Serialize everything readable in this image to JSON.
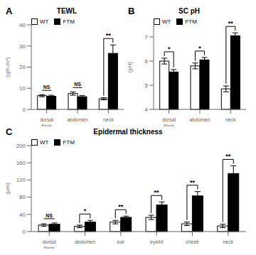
{
  "chart_data": [
    {
      "type": "bar",
      "title": "TEWL",
      "y_label": "(g/h.m²)",
      "annotations": [
        "A"
      ],
      "categories": [
        "dorsal\nflank",
        "abdomen",
        "neck"
      ],
      "series": [
        {
          "name": "WT",
          "color": "white",
          "values": [
            6.5,
            7.5,
            5.0
          ],
          "errors": [
            0.5,
            0.8,
            0.5
          ]
        },
        {
          "name": "FTM",
          "color": "black",
          "values": [
            6.2,
            6.0,
            26.5
          ],
          "errors": [
            0.5,
            0.5,
            4.0
          ]
        }
      ],
      "significance": [
        "NS",
        "NS",
        "**"
      ],
      "ylim": [
        0,
        40
      ],
      "yticks": [
        0,
        10,
        20,
        30,
        40
      ],
      "legend": "upper left"
    },
    {
      "type": "bar",
      "title": "SC pH",
      "y_label": "(pH)",
      "annotations": [
        "B"
      ],
      "categories": [
        "dorsal\nflank",
        "abdomen",
        "neck"
      ],
      "series": [
        {
          "name": "WT",
          "color": "white",
          "values": [
            6.0,
            5.8,
            4.85
          ],
          "errors": [
            0.12,
            0.12,
            0.12
          ]
        },
        {
          "name": "FTM",
          "color": "black",
          "values": [
            5.55,
            6.05,
            7.05
          ],
          "errors": [
            0.1,
            0.1,
            0.12
          ]
        }
      ],
      "significance": [
        "*",
        "*",
        "**"
      ],
      "ylim": [
        4,
        7.5
      ],
      "yticks": [
        4,
        5,
        6,
        7
      ],
      "legend": "upper left"
    },
    {
      "type": "bar",
      "title": "Epidermal thickness",
      "y_label": "(μm)",
      "annotations": [
        "C"
      ],
      "categories": [
        "dorsal\nflank",
        "abdomen",
        "ear",
        "eyelid",
        "cheek",
        "neck"
      ],
      "series": [
        {
          "name": "WT",
          "color": "white",
          "values": [
            15,
            12,
            22,
            33,
            18,
            13
          ],
          "errors": [
            3,
            3,
            4,
            5,
            4,
            4
          ]
        },
        {
          "name": "FTM",
          "color": "black",
          "values": [
            17,
            22,
            33,
            62,
            83,
            135
          ],
          "errors": [
            3,
            4,
            3,
            7,
            10,
            18
          ]
        }
      ],
      "significance": [
        "NS",
        "*",
        "**",
        "**",
        "**",
        "**"
      ],
      "ylim": [
        0,
        200
      ],
      "yticks": [
        0,
        40,
        80,
        120,
        160,
        200
      ],
      "legend": "upper left"
    }
  ]
}
